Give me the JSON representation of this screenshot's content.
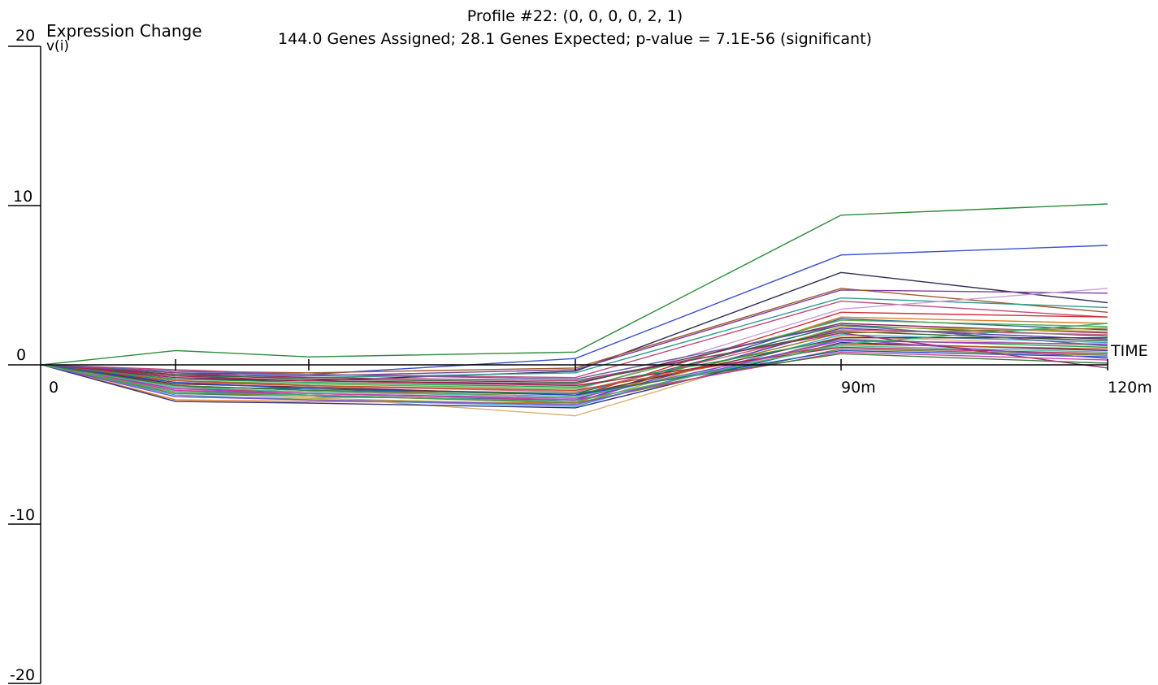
{
  "title": "Profile #22: (0, 0, 0, 0, 2, 1)",
  "subtitle": "144.0 Genes Assigned; 28.1 Genes Expected; p-value = 7.1E-56 (significant)",
  "chart_data": {
    "type": "line",
    "ylabel": "Expression Change",
    "ylabel2": "v(i)",
    "xlabel": "TIME",
    "ylim": [
      -20,
      20
    ],
    "y_ticks": [
      "20",
      "10",
      "0",
      "-10",
      "-20"
    ],
    "x_ticks": [
      "0",
      "",
      "",
      "",
      "90m",
      "120m"
    ],
    "x": [
      0,
      15,
      30,
      60,
      90,
      120
    ],
    "profile_model": [
      0,
      0,
      0,
      0,
      2,
      1
    ],
    "genes_assigned": 144.0,
    "genes_expected": 28.1,
    "p_value": "7.1E-56",
    "series": [
      {
        "values": [
          0,
          0.9,
          0.5,
          0.8,
          9.4,
          10.1
        ],
        "color": "#2e8b3e"
      },
      {
        "values": [
          0,
          -0.5,
          -0.6,
          0.4,
          6.9,
          7.5
        ],
        "color": "#3a4fd0"
      },
      {
        "values": [
          0,
          -0.9,
          -1.0,
          -0.4,
          5.8,
          3.9
        ],
        "color": "#2b2b55"
      },
      {
        "values": [
          0,
          -0.6,
          -0.7,
          -0.3,
          4.7,
          4.5
        ],
        "color": "#7a3fa0"
      },
      {
        "values": [
          0,
          -0.4,
          -0.5,
          -0.2,
          4.8,
          3.3
        ],
        "color": "#a05a2c"
      },
      {
        "values": [
          0,
          -0.7,
          -0.8,
          -0.5,
          4.2,
          3.6
        ],
        "color": "#2f9c8c"
      },
      {
        "values": [
          0,
          -0.3,
          -0.6,
          -0.8,
          4.0,
          3.0
        ],
        "color": "#c04a7a"
      },
      {
        "values": [
          0,
          -1.2,
          -1.4,
          -1.6,
          3.5,
          4.8
        ],
        "color": "#c9a0d8"
      },
      {
        "values": [
          0,
          -1.5,
          -1.7,
          -2.0,
          3.3,
          3.0
        ],
        "color": "#d0303a"
      },
      {
        "values": [
          0,
          -2.2,
          -2.3,
          -2.4,
          3.0,
          2.6
        ],
        "color": "#e07a20"
      },
      {
        "values": [
          0,
          -1.8,
          -2.0,
          -2.2,
          2.9,
          2.2
        ],
        "color": "#2060a0"
      },
      {
        "values": [
          0,
          -1.0,
          -1.2,
          -1.5,
          2.8,
          2.4
        ],
        "color": "#5ab04a"
      },
      {
        "values": [
          0,
          -0.8,
          -1.0,
          -1.2,
          2.6,
          2.0
        ],
        "color": "#8a2060"
      },
      {
        "values": [
          0,
          -1.4,
          -1.5,
          -1.8,
          2.5,
          1.8
        ],
        "color": "#1a7060"
      },
      {
        "values": [
          0,
          -2.0,
          -2.1,
          -2.5,
          2.4,
          2.1
        ],
        "color": "#b0b030"
      },
      {
        "values": [
          0,
          -1.6,
          -1.9,
          -2.3,
          2.3,
          1.6
        ],
        "color": "#4a3ab0"
      },
      {
        "values": [
          0,
          -1.1,
          -1.3,
          -1.7,
          2.2,
          1.9
        ],
        "color": "#d06080"
      },
      {
        "values": [
          0,
          -0.6,
          -0.9,
          -1.1,
          2.1,
          1.5
        ],
        "color": "#306030"
      },
      {
        "values": [
          0,
          -1.3,
          -1.6,
          -2.0,
          2.0,
          2.3
        ],
        "color": "#9a7030"
      },
      {
        "values": [
          0,
          -1.9,
          -2.2,
          -2.6,
          1.9,
          1.4
        ],
        "color": "#40a0d0"
      },
      {
        "values": [
          0,
          -1.7,
          -2.0,
          -3.2,
          1.8,
          1.2
        ],
        "color": "#e0b070"
      },
      {
        "values": [
          0,
          -1.2,
          -1.4,
          -1.9,
          1.7,
          1.7
        ],
        "color": "#6a2a2a"
      },
      {
        "values": [
          0,
          -0.9,
          -1.1,
          -1.4,
          1.6,
          1.1
        ],
        "color": "#20a050"
      },
      {
        "values": [
          0,
          -1.5,
          -1.8,
          -2.1,
          1.5,
          1.3
        ],
        "color": "#a040c0"
      },
      {
        "values": [
          0,
          -2.3,
          -2.4,
          -2.7,
          1.4,
          0.9
        ],
        "color": "#303080"
      },
      {
        "values": [
          0,
          -1.0,
          -1.3,
          -1.6,
          1.3,
          1.0
        ],
        "color": "#c05020"
      },
      {
        "values": [
          0,
          -1.4,
          -1.7,
          -2.0,
          1.2,
          0.8
        ],
        "color": "#50c0a0"
      },
      {
        "values": [
          0,
          -0.7,
          -1.0,
          -1.3,
          1.1,
          0.7
        ],
        "color": "#b02050"
      },
      {
        "values": [
          0,
          -1.8,
          -1.9,
          -2.4,
          1.0,
          0.6
        ],
        "color": "#708030"
      },
      {
        "values": [
          0,
          -1.1,
          -1.5,
          -1.9,
          0.9,
          0.5
        ],
        "color": "#2050c0"
      },
      {
        "values": [
          0,
          -1.6,
          -1.8,
          -2.2,
          0.8,
          0.3
        ],
        "color": "#d040a0"
      },
      {
        "values": [
          0,
          -1.3,
          -1.6,
          -1.8,
          0.7,
          0.1
        ],
        "color": "#3a7a3a"
      },
      {
        "values": [
          0,
          -2.0,
          -2.2,
          -2.5,
          1.6,
          0.4
        ],
        "color": "#8050d0"
      },
      {
        "values": [
          0,
          -0.5,
          -0.8,
          -1.0,
          2.0,
          -0.2
        ],
        "color": "#a03070"
      },
      {
        "values": [
          0,
          -1.7,
          -1.9,
          -2.3,
          1.3,
          2.6
        ],
        "color": "#40b070"
      },
      {
        "values": [
          0,
          -0.4,
          -0.6,
          -0.9,
          2.5,
          1.2
        ],
        "color": "#6060a0"
      }
    ]
  }
}
